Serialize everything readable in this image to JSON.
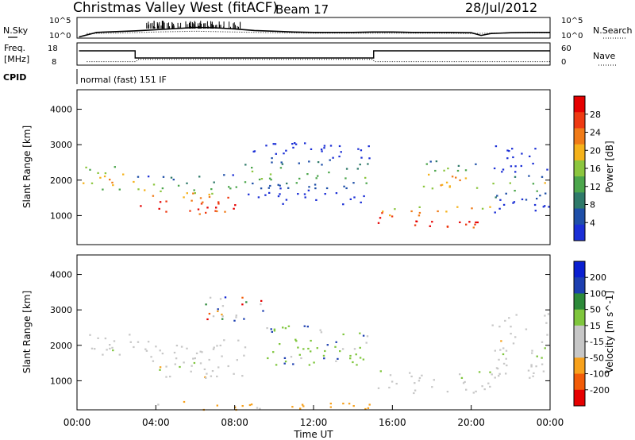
{
  "header": {
    "title": "Christmas Valley West (fitACF)",
    "beam": "Beam 17",
    "date": "28/Jul/2012"
  },
  "side_labels": {
    "nsky": "N.Sky",
    "nsearch": "N.Search",
    "freq_line1": "Freq.",
    "freq_line2": "[MHz]",
    "nave": "Nave",
    "cpid": "CPID",
    "cpid_value": "normal (fast) 151 IF"
  },
  "colors": {
    "power": [
      "#1b2fd6",
      "#1f4fa8",
      "#2f7a6a",
      "#4ca64c",
      "#8cc63f",
      "#f5b21b",
      "#f07b18",
      "#ee3a12",
      "#e50000"
    ],
    "velocity": [
      "#e60000",
      "#f25c08",
      "#f7a11c",
      "#c7c7c7",
      "#c7c7c7",
      "#7fc63d",
      "#2d8a3a",
      "#1d3fb0",
      "#0a1fd0"
    ]
  },
  "chart_data": [
    {
      "type": "line",
      "panel": "noise",
      "ylabel_left": "N.Sky",
      "ylabel_right": "N.Search",
      "yticks_left": [
        "10^5",
        "10^0"
      ],
      "yticks_right": [
        "10^5",
        "10^0"
      ],
      "ylim_log10": [
        0,
        5
      ],
      "series": [
        {
          "name": "N.Sky",
          "x": [
            0.1,
            1,
            2,
            3,
            4,
            5,
            6,
            7,
            8,
            9,
            10,
            11,
            12,
            13,
            14,
            15,
            16,
            17,
            18,
            19,
            20,
            20.5,
            21,
            22,
            23,
            24
          ],
          "values": [
            0.1,
            1.3,
            1.5,
            1.7,
            2.0,
            2.3,
            2.6,
            2.5,
            2.2,
            1.8,
            1.6,
            1.4,
            1.3,
            1.3,
            1.3,
            1.4,
            1.4,
            1.3,
            1.3,
            1.3,
            1.2,
            0.5,
            1.0,
            1.2,
            1.3,
            1.3
          ]
        },
        {
          "name": "N.Search",
          "x": [
            0.5,
            2,
            4,
            6,
            8,
            10,
            12,
            14,
            16,
            18,
            20,
            22,
            24
          ],
          "values": [
            1.0,
            1.1,
            1.4,
            1.6,
            1.4,
            1.2,
            1.1,
            1.1,
            1.1,
            1.1,
            1.0,
            1.2,
            1.2
          ]
        }
      ]
    },
    {
      "type": "line",
      "panel": "frequency",
      "yticks_left": [
        "18",
        "8"
      ],
      "yticks_right": [
        "60",
        "0"
      ],
      "series": [
        {
          "name": "Freq.",
          "x": [
            0.1,
            2.95,
            2.95,
            15.05,
            15.05,
            24
          ],
          "values": [
            14.8,
            14.8,
            11.2,
            11.2,
            14.8,
            14.8
          ]
        },
        {
          "name": "Nave",
          "x": [
            0.5,
            3,
            3.1,
            15,
            15.1,
            24
          ],
          "values": [
            8,
            8,
            15,
            15,
            8,
            8
          ]
        }
      ]
    },
    {
      "type": "heatmap",
      "panel": "power",
      "ylabel": "Slant Range [km]",
      "ylim": [
        180,
        4550
      ],
      "yticks": [
        1000,
        2000,
        3000,
        4000
      ],
      "xlim": [
        0,
        24
      ],
      "colorbar_label": "Power [dB]",
      "colorbar_ticks": [
        "28",
        "24",
        "20",
        "16",
        "12",
        "8",
        "4"
      ],
      "regions": [
        {
          "t0": 0.1,
          "t1": 2.9,
          "r0": 1750,
          "r1": 2450,
          "level": "green",
          "core": "orange",
          "core_r": 2050
        },
        {
          "t0": 3.0,
          "t1": 8.5,
          "r0": 1050,
          "r1": 2200,
          "level": "green",
          "core": "red",
          "core_r": 1300
        },
        {
          "t0": 8.5,
          "t1": 14.8,
          "r0": 1300,
          "r1": 3100,
          "level": "blue",
          "core": "green",
          "core_r": 2200
        },
        {
          "t0": 15.2,
          "t1": 21.0,
          "r0": 650,
          "r1": 1300,
          "level": "green",
          "core": "red",
          "core_r": 850
        },
        {
          "t0": 17.5,
          "t1": 20.5,
          "r0": 1700,
          "r1": 2600,
          "level": "blue",
          "core": "orange",
          "core_r": 2000
        },
        {
          "t0": 21.0,
          "t1": 23.9,
          "r0": 1100,
          "r1": 3000,
          "level": "blue",
          "core": "green",
          "core_r": 1900
        }
      ]
    },
    {
      "type": "heatmap",
      "panel": "velocity",
      "ylabel": "Slant Range [km]",
      "ylim": [
        180,
        4550
      ],
      "yticks": [
        1000,
        2000,
        3000,
        4000
      ],
      "xlim": [
        0,
        24
      ],
      "xticks": [
        "00:00",
        "04:00",
        "08:00",
        "12:00",
        "16:00",
        "20:00",
        "00:00"
      ],
      "xlabel": "Time UT",
      "colorbar_label": "Velocity [m s^-1]",
      "colorbar_ticks": [
        "200",
        "100",
        "50",
        "15",
        "-15",
        "-50",
        "-100",
        "-200"
      ],
      "regions": [
        {
          "t0": 0.1,
          "t1": 2.9,
          "r0": 1750,
          "r1": 2450,
          "level": "grey"
        },
        {
          "t0": 3.0,
          "t1": 8.5,
          "r0": 1050,
          "r1": 2200,
          "level": "grey"
        },
        {
          "t0": 6.5,
          "t1": 9.5,
          "r0": 2600,
          "r1": 3500,
          "level": "mixed"
        },
        {
          "t0": 9.5,
          "t1": 14.8,
          "r0": 1300,
          "r1": 2600,
          "level": "green"
        },
        {
          "t0": 15.2,
          "t1": 21.0,
          "r0": 650,
          "r1": 1300,
          "level": "grey"
        },
        {
          "t0": 4.0,
          "t1": 15.0,
          "r0": 200,
          "r1": 450,
          "level": "orange"
        },
        {
          "t0": 21.0,
          "t1": 23.9,
          "r0": 1100,
          "r1": 3000,
          "level": "grey"
        }
      ]
    }
  ]
}
